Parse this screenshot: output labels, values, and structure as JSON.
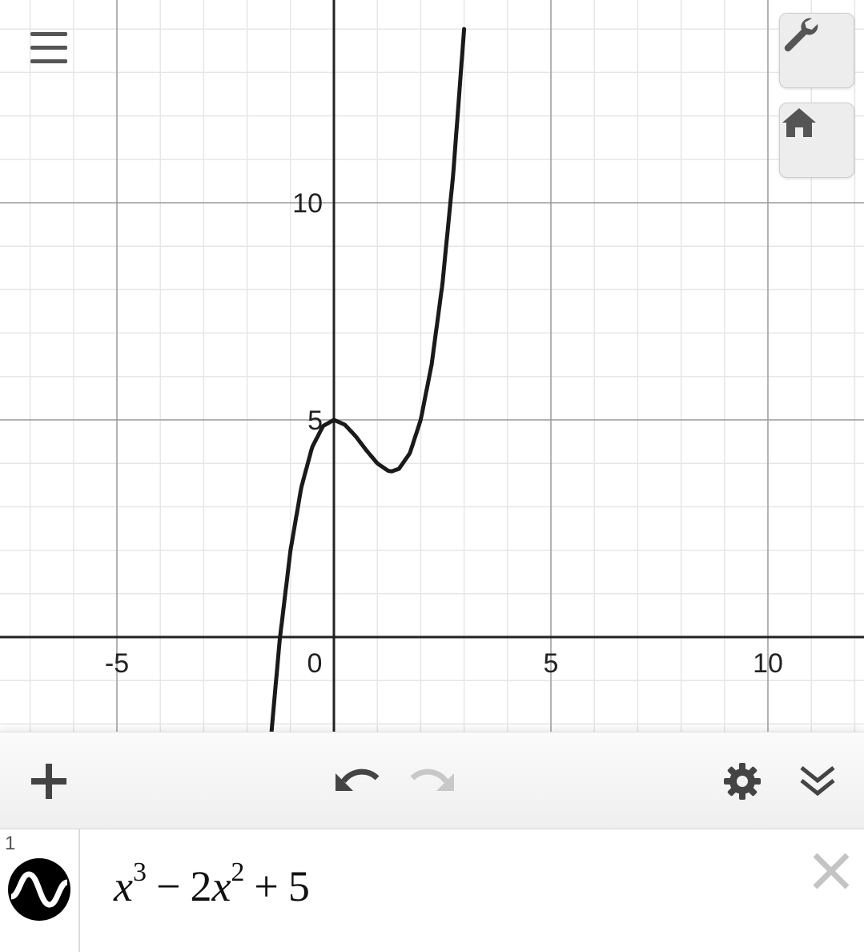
{
  "graph": {
    "x_tick_labels": [
      "-5",
      "0",
      "5",
      "10"
    ],
    "y_tick_labels": [
      "5",
      "10"
    ],
    "curve_color": "#1a1a1a",
    "axis_color": "#222222",
    "x_range": [
      -7.7,
      12.2
    ],
    "y_range": [
      -2.2,
      14.6
    ]
  },
  "chart_data": {
    "type": "line",
    "series": [
      {
        "name": "x^3 − 2x^2 + 5",
        "x": [
          -1.5,
          -1.25,
          -1.0,
          -0.75,
          -0.5,
          -0.25,
          0,
          0.25,
          0.5,
          0.75,
          1.0,
          1.25,
          1.333,
          1.5,
          1.75,
          2.0,
          2.25,
          2.5,
          2.75,
          3.0
        ],
        "y": [
          -2.875,
          -0.078,
          2.0,
          3.453,
          4.375,
          4.859,
          5.0,
          4.891,
          4.625,
          4.297,
          4.0,
          3.828,
          3.815,
          3.875,
          4.234,
          5.0,
          6.266,
          8.125,
          10.672,
          14.0
        ]
      }
    ],
    "xlim": [
      -7.7,
      12.2
    ],
    "ylim": [
      -2.2,
      14.6
    ],
    "x_ticks": [
      -5,
      0,
      5,
      10
    ],
    "y_ticks": [
      5,
      10
    ],
    "grid": true
  },
  "toolbar": {
    "add_icon": "plus-icon",
    "undo_icon": "undo-icon",
    "redo_icon": "redo-icon",
    "settings_icon": "gear-icon",
    "collapse_icon": "double-chevron-down-icon"
  },
  "expressions": [
    {
      "index": "1",
      "base": "x",
      "exp1": "3",
      "minus": "−",
      "coef": "2",
      "var2": "x",
      "exp2": "2",
      "plus": "+",
      "constant": "5",
      "color": "#000000"
    }
  ]
}
